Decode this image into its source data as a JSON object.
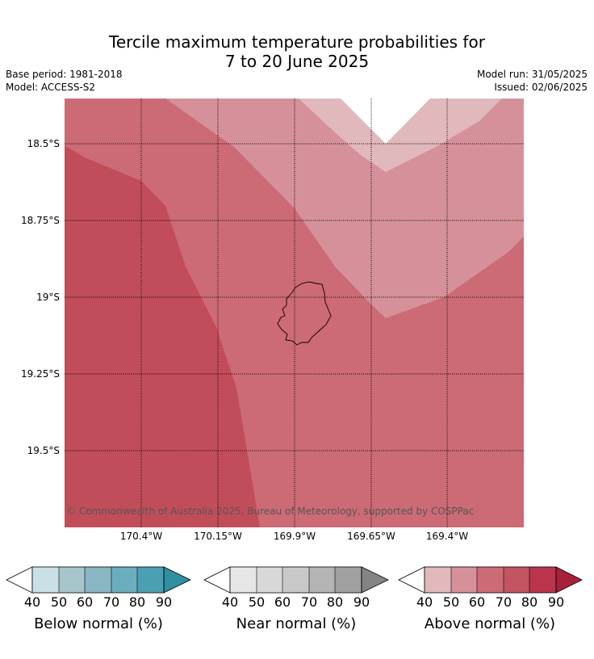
{
  "title_line1": "Tercile maximum temperature probabilities for",
  "title_line2": "7 to 20 June 2025",
  "base_period": "Base period: 1981-2018",
  "model": "Model: ACCESS-S2",
  "model_run": "Model run: 31/05/2025",
  "issued": "Issued: 02/06/2025",
  "copyright": "© Commonwealth of Australia 2025, Bureau of Meteorology, supported by COSPPac",
  "lat_labels": [
    "18.5°S",
    "18.75°S",
    "19°S",
    "19.25°S",
    "19.5°S"
  ],
  "lon_labels": [
    "170.4°W",
    "170.15°W",
    "169.9°W",
    "169.65°W",
    "169.4°W"
  ],
  "colorbars": [
    {
      "label": "Below normal (%)",
      "ticks": [
        "40",
        "50",
        "60",
        "70",
        "80",
        "90"
      ],
      "colors": [
        "#c9e0e7",
        "#a6c6cc",
        "#88b6c2",
        "#6aaebd",
        "#4a9fb3",
        "#2f8fa3"
      ]
    },
    {
      "label": "Near normal (%)",
      "ticks": [
        "40",
        "50",
        "60",
        "70",
        "80",
        "90"
      ],
      "colors": [
        "#e6e6e6",
        "#d8d8d8",
        "#c8c8c8",
        "#b4b4b4",
        "#a0a0a0",
        "#848484"
      ]
    },
    {
      "label": "Above normal (%)",
      "ticks": [
        "40",
        "50",
        "60",
        "70",
        "80",
        "90"
      ],
      "colors": [
        "#e1b8bc",
        "#d6909a",
        "#cc6b75",
        "#c35461",
        "#b8354b",
        "#a8213b"
      ]
    }
  ],
  "map_colors": {
    "above_40_50": "#e1b8bc",
    "above_50_60": "#d6909a",
    "above_60_70": "#cc6b75",
    "above_70_80": "#c24d5a"
  }
}
